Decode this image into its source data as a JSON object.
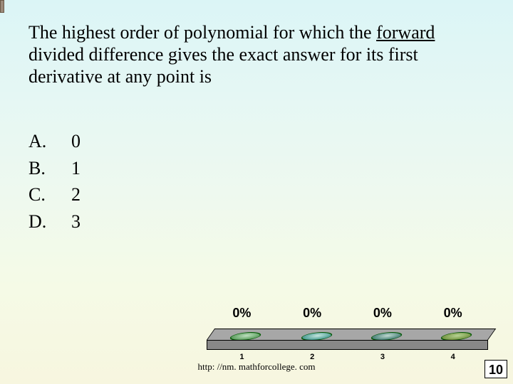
{
  "question": {
    "pre": "The highest order of polynomial for which the ",
    "underlined": "forward",
    "post": " divided difference gives the exact answer for its first derivative at any point is"
  },
  "options": [
    {
      "letter": "A.",
      "value": "0"
    },
    {
      "letter": "B.",
      "value": "1"
    },
    {
      "letter": "C.",
      "value": "2"
    },
    {
      "letter": "D.",
      "value": "3"
    }
  ],
  "chart": {
    "type": "bar",
    "percent_labels": [
      "0%",
      "0%",
      "0%",
      "0%"
    ],
    "axis_labels": [
      "1",
      "2",
      "3",
      "4"
    ],
    "oval_colors": [
      "#6ca96e",
      "#5ea9a0",
      "#5c9087",
      "#80a050"
    ],
    "platform_top_color": "#a7a7a7",
    "platform_front_color": "#888888",
    "label_fontsize": 18,
    "axis_fontsize": 11
  },
  "footer": {
    "url": "http: //nm. mathforcollege. com",
    "slide_number": "10"
  },
  "colors": {
    "bg_top": "#dbf5f6",
    "bg_bottom": "#f7f6df",
    "text": "#000000"
  }
}
